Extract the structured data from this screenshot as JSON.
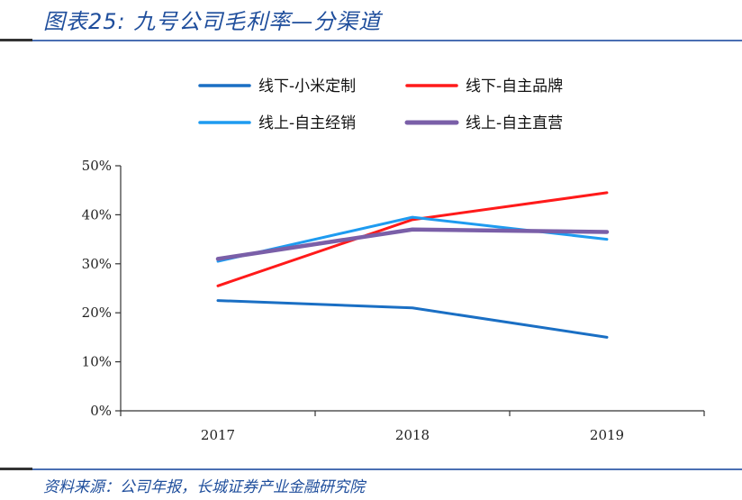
{
  "figure": {
    "title": "图表25:  九号公司毛利率—分渠道",
    "source": "资料来源：公司年报，长城证券产业金融研究院"
  },
  "chart_data": {
    "type": "line",
    "title": "",
    "xlabel": "",
    "ylabel": "",
    "categories": [
      "2017",
      "2018",
      "2019"
    ],
    "ylim": [
      0,
      50
    ],
    "yticks": [
      "0%",
      "10%",
      "20%",
      "30%",
      "40%",
      "50%"
    ],
    "legend_position": "top",
    "grid": false,
    "series": [
      {
        "name": "线下-小米定制",
        "color": "#1a6fc4",
        "values": [
          22.5,
          21.0,
          15.0
        ]
      },
      {
        "name": "线下-自主品牌",
        "color": "#ff1a1a",
        "values": [
          25.5,
          39.0,
          44.5
        ]
      },
      {
        "name": "线上-自主经销",
        "color": "#1e9bf0",
        "values": [
          30.5,
          39.5,
          35.0
        ]
      },
      {
        "name": "线上-自主直营",
        "color": "#7a5fa8",
        "values": [
          31.0,
          37.0,
          36.5
        ]
      }
    ]
  }
}
